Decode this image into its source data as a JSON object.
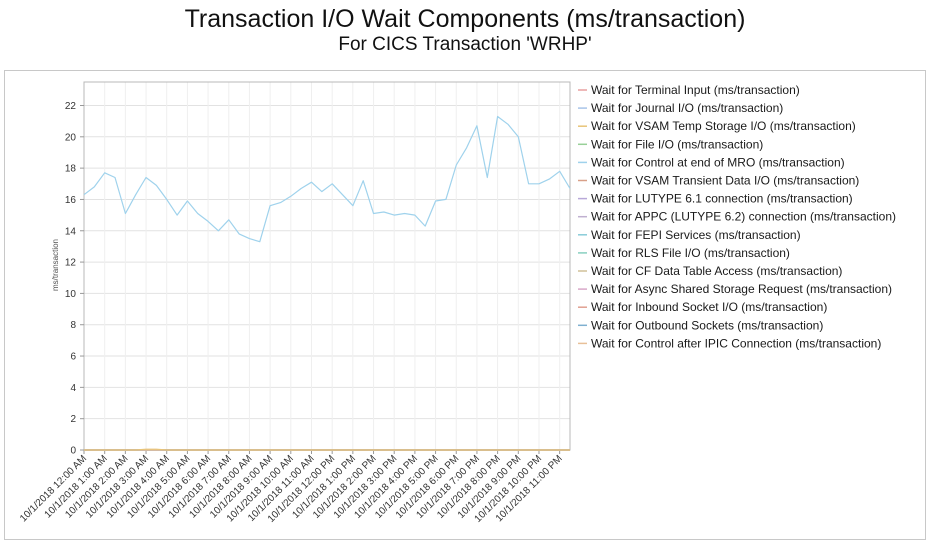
{
  "title": "Transaction I/O Wait Components (ms/transaction)",
  "subtitle": "For CICS Transaction 'WRHP'",
  "chart_data": {
    "type": "line",
    "title": "Transaction I/O Wait Components (ms/transaction)",
    "subtitle": "For CICS Transaction 'WRHP'",
    "ylabel": "ms/transaction",
    "xlabel": "",
    "ylim": [
      0,
      23.5
    ],
    "yticks": [
      0,
      2,
      4,
      6,
      8,
      10,
      12,
      14,
      16,
      18,
      20,
      22
    ],
    "grid": true,
    "legend_position": "right",
    "categories": [
      "10/1/2018 12:00 AM",
      "10/1/2018 1:00 AM",
      "10/1/2018 2:00 AM",
      "10/1/2018 3:00 AM",
      "10/1/2018 4:00 AM",
      "10/1/2018 5:00 AM",
      "10/1/2018 6:00 AM",
      "10/1/2018 7:00 AM",
      "10/1/2018 8:00 AM",
      "10/1/2018 9:00 AM",
      "10/1/2018 10:00 AM",
      "10/1/2018 11:00 AM",
      "10/1/2018 12:00 PM",
      "10/1/2018 1:00 PM",
      "10/1/2018 2:00 PM",
      "10/1/2018 3:00 PM",
      "10/1/2018 4:00 PM",
      "10/1/2018 5:00 PM",
      "10/1/2018 6:00 PM",
      "10/1/2018 7:00 PM",
      "10/1/2018 8:00 PM",
      "10/1/2018 9:00 PM",
      "10/1/2018 10:00 PM",
      "10/1/2018 11:00 PM"
    ],
    "x": [
      0,
      0.5,
      1,
      1.5,
      2,
      2.5,
      3,
      3.5,
      4,
      4.5,
      5,
      5.5,
      6,
      6.5,
      7,
      7.5,
      8,
      8.5,
      9,
      9.5,
      10,
      10.5,
      11,
      11.5,
      12,
      12.5,
      13,
      13.5,
      14,
      14.5,
      15,
      15.5,
      16,
      16.5,
      17,
      17.5,
      18,
      18.5,
      19,
      19.5,
      20,
      20.5,
      21,
      21.5,
      22,
      22.5,
      23,
      23.5
    ],
    "series": [
      {
        "name": "Wait for Terminal Input (ms/transaction)",
        "color": "#e8a0a0",
        "values": [
          0,
          0,
          0,
          0,
          0,
          0,
          0,
          0,
          0,
          0,
          0,
          0,
          0,
          0,
          0,
          0,
          0,
          0,
          0,
          0,
          0,
          0,
          0,
          0,
          0,
          0,
          0,
          0,
          0,
          0,
          0,
          0,
          0,
          0,
          0,
          0,
          0,
          0,
          0,
          0,
          0,
          0,
          0,
          0,
          0,
          0,
          0,
          0
        ]
      },
      {
        "name": "Wait for Journal I/O (ms/transaction)",
        "color": "#a8c4e8",
        "values": [
          0,
          0,
          0,
          0,
          0,
          0,
          0,
          0,
          0,
          0,
          0,
          0,
          0,
          0,
          0,
          0,
          0,
          0,
          0,
          0,
          0,
          0,
          0,
          0,
          0,
          0,
          0,
          0,
          0,
          0,
          0,
          0,
          0,
          0,
          0,
          0,
          0,
          0,
          0,
          0,
          0,
          0,
          0,
          0,
          0,
          0,
          0,
          0
        ]
      },
      {
        "name": "Wait for VSAM Temp Storage I/O (ms/transaction)",
        "color": "#e8c478",
        "values": [
          0,
          0,
          0,
          0,
          0,
          0,
          0.05,
          0.05,
          0,
          0,
          0,
          0,
          0,
          0,
          0,
          0,
          0,
          0,
          0,
          0,
          0,
          0,
          0,
          0,
          0,
          0,
          0,
          0,
          0,
          0,
          0,
          0,
          0,
          0,
          0,
          0,
          0,
          0,
          0,
          0,
          0,
          0,
          0,
          0,
          0,
          0,
          0,
          0
        ]
      },
      {
        "name": "Wait for File I/O (ms/transaction)",
        "color": "#98d098",
        "values": [
          0,
          0,
          0,
          0,
          0,
          0,
          0,
          0,
          0,
          0,
          0,
          0,
          0,
          0,
          0,
          0,
          0,
          0,
          0,
          0,
          0,
          0,
          0,
          0,
          0,
          0,
          0,
          0,
          0,
          0,
          0,
          0,
          0,
          0,
          0,
          0,
          0,
          0,
          0,
          0,
          0,
          0,
          0,
          0,
          0,
          0,
          0,
          0
        ]
      },
      {
        "name": "Wait for Control at end of MRO (ms/transaction)",
        "color": "#9fd2ec",
        "values": [
          16.3,
          16.8,
          17.7,
          17.4,
          15.1,
          16.3,
          17.4,
          16.9,
          16.0,
          15.0,
          15.9,
          15.1,
          14.6,
          14.0,
          14.7,
          13.8,
          13.5,
          13.3,
          15.6,
          15.8,
          16.2,
          16.7,
          17.1,
          16.5,
          17.0,
          16.3,
          15.6,
          17.2,
          15.1,
          15.2,
          15.0,
          15.1,
          15.0,
          14.3,
          15.9,
          16.0,
          18.2,
          19.3,
          20.7,
          17.4,
          21.3,
          20.8,
          20.0,
          17.0,
          17.0,
          17.3,
          17.8,
          16.7
        ]
      },
      {
        "name": "Wait for VSAM Transient Data I/O (ms/transaction)",
        "color": "#d8a088",
        "values": [
          0,
          0,
          0,
          0,
          0,
          0,
          0,
          0,
          0,
          0,
          0,
          0,
          0,
          0,
          0,
          0,
          0,
          0,
          0,
          0,
          0,
          0,
          0,
          0,
          0,
          0,
          0,
          0,
          0,
          0,
          0,
          0,
          0,
          0,
          0,
          0,
          0,
          0,
          0,
          0,
          0,
          0,
          0,
          0,
          0,
          0,
          0,
          0
        ]
      },
      {
        "name": "Wait for LUTYPE 6.1 connection (ms/transaction)",
        "color": "#b8a8d8",
        "values": [
          0,
          0,
          0,
          0,
          0,
          0,
          0,
          0,
          0,
          0,
          0,
          0,
          0,
          0,
          0,
          0,
          0,
          0,
          0,
          0,
          0,
          0,
          0,
          0,
          0,
          0,
          0,
          0,
          0,
          0,
          0,
          0,
          0,
          0,
          0,
          0,
          0,
          0,
          0,
          0,
          0,
          0,
          0,
          0,
          0,
          0,
          0,
          0
        ]
      },
      {
        "name": "Wait for APPC (LUTYPE 6.2) connection (ms/transaction)",
        "color": "#c0b0d0",
        "values": [
          0,
          0,
          0,
          0,
          0,
          0,
          0,
          0,
          0,
          0,
          0,
          0,
          0,
          0,
          0,
          0,
          0,
          0,
          0,
          0,
          0,
          0,
          0,
          0,
          0,
          0,
          0,
          0,
          0,
          0,
          0,
          0,
          0,
          0,
          0,
          0,
          0,
          0,
          0,
          0,
          0,
          0,
          0,
          0,
          0,
          0,
          0,
          0
        ]
      },
      {
        "name": "Wait for FEPI Services (ms/transaction)",
        "color": "#88ccd8",
        "values": [
          0,
          0,
          0,
          0,
          0,
          0,
          0,
          0,
          0,
          0,
          0,
          0,
          0,
          0,
          0,
          0,
          0,
          0,
          0,
          0,
          0,
          0,
          0,
          0,
          0,
          0,
          0,
          0,
          0,
          0,
          0,
          0,
          0,
          0,
          0,
          0,
          0,
          0,
          0,
          0,
          0,
          0,
          0,
          0,
          0,
          0,
          0,
          0
        ]
      },
      {
        "name": "Wait for RLS File I/O (ms/transaction)",
        "color": "#88d0c0",
        "values": [
          0,
          0,
          0,
          0,
          0,
          0,
          0,
          0,
          0,
          0,
          0,
          0,
          0,
          0,
          0,
          0,
          0,
          0,
          0,
          0,
          0,
          0,
          0,
          0,
          0,
          0,
          0,
          0,
          0,
          0,
          0,
          0,
          0,
          0,
          0,
          0,
          0,
          0,
          0,
          0,
          0,
          0,
          0,
          0,
          0,
          0,
          0,
          0
        ]
      },
      {
        "name": "Wait for CF Data Table Access (ms/transaction)",
        "color": "#d0c098",
        "values": [
          0,
          0,
          0,
          0,
          0,
          0,
          0,
          0,
          0,
          0,
          0,
          0,
          0,
          0,
          0,
          0,
          0,
          0,
          0,
          0,
          0,
          0,
          0,
          0,
          0,
          0,
          0,
          0,
          0,
          0,
          0,
          0,
          0,
          0,
          0,
          0,
          0,
          0,
          0,
          0,
          0,
          0,
          0,
          0,
          0,
          0,
          0,
          0
        ]
      },
      {
        "name": "Wait for Async Shared Storage Request (ms/transaction)",
        "color": "#d8a8c8",
        "values": [
          0,
          0,
          0,
          0,
          0,
          0,
          0,
          0,
          0,
          0,
          0,
          0,
          0,
          0,
          0,
          0,
          0,
          0,
          0,
          0,
          0,
          0,
          0,
          0,
          0,
          0,
          0,
          0,
          0,
          0,
          0,
          0,
          0,
          0,
          0,
          0,
          0,
          0,
          0,
          0,
          0,
          0,
          0,
          0,
          0,
          0,
          0,
          0
        ]
      },
      {
        "name": "Wait for Inbound Socket I/O (ms/transaction)",
        "color": "#e0a090",
        "values": [
          0,
          0,
          0,
          0,
          0,
          0,
          0,
          0,
          0,
          0,
          0,
          0,
          0,
          0,
          0,
          0,
          0,
          0,
          0,
          0,
          0,
          0,
          0,
          0,
          0,
          0,
          0,
          0,
          0,
          0,
          0,
          0,
          0,
          0,
          0,
          0,
          0,
          0,
          0,
          0,
          0,
          0,
          0,
          0,
          0,
          0,
          0,
          0
        ]
      },
      {
        "name": "Wait for Outbound Sockets (ms/transaction)",
        "color": "#7fb0d0",
        "values": [
          0,
          0,
          0,
          0,
          0,
          0,
          0,
          0,
          0,
          0,
          0,
          0,
          0,
          0,
          0,
          0,
          0,
          0,
          0,
          0,
          0,
          0,
          0,
          0,
          0,
          0,
          0,
          0,
          0,
          0,
          0,
          0,
          0,
          0,
          0,
          0,
          0,
          0,
          0,
          0,
          0,
          0,
          0,
          0,
          0,
          0,
          0,
          0
        ]
      },
      {
        "name": "Wait for Control after IPIC Connection (ms/transaction)",
        "color": "#e8c098",
        "values": [
          0,
          0,
          0,
          0,
          0,
          0,
          0,
          0,
          0,
          0,
          0,
          0,
          0,
          0,
          0,
          0,
          0,
          0,
          0,
          0,
          0,
          0,
          0,
          0,
          0,
          0,
          0,
          0,
          0,
          0,
          0,
          0,
          0,
          0,
          0,
          0,
          0,
          0,
          0,
          0,
          0,
          0,
          0,
          0,
          0,
          0,
          0,
          0
        ]
      }
    ]
  }
}
